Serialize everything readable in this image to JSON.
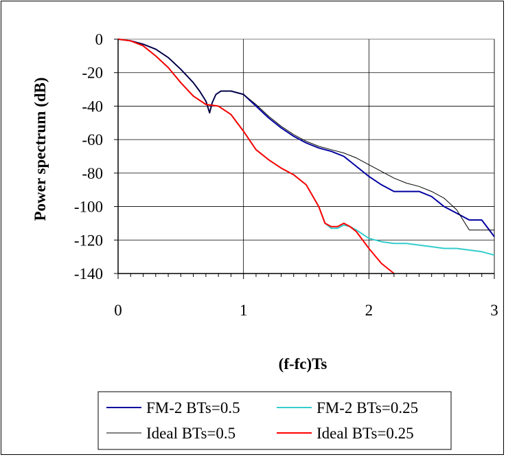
{
  "chart_data": {
    "type": "line",
    "title": "",
    "xlabel": "(f-fc)Ts",
    "ylabel": "Power spectrum (dB)",
    "xlim": [
      0,
      3
    ],
    "ylim": [
      -140,
      0
    ],
    "x_ticks": [
      "0",
      "1",
      "2",
      "3"
    ],
    "y_ticks": [
      "0",
      "-20",
      "-40",
      "-60",
      "-80",
      "-100",
      "-120",
      "-140"
    ],
    "grid": true,
    "legend_position": "bottom",
    "series": [
      {
        "name": "FM-2 BTs=0.5",
        "color": "#0000a0",
        "x": [
          0,
          0.1,
          0.2,
          0.3,
          0.4,
          0.5,
          0.55,
          0.6,
          0.65,
          0.7,
          0.73,
          0.75,
          0.78,
          0.82,
          0.9,
          1.0,
          1.1,
          1.2,
          1.3,
          1.4,
          1.5,
          1.6,
          1.7,
          1.8,
          1.9,
          2.0,
          2.1,
          2.2,
          2.3,
          2.4,
          2.5,
          2.6,
          2.7,
          2.8,
          2.9,
          3.0
        ],
        "values": [
          0,
          -1,
          -3,
          -6,
          -11,
          -18,
          -22,
          -26,
          -31,
          -37,
          -44,
          -38,
          -33,
          -31,
          -31,
          -33,
          -40,
          -47,
          -53,
          -58,
          -62,
          -65,
          -67,
          -70,
          -76,
          -82,
          -87,
          -91,
          -91,
          -91,
          -94,
          -100,
          -104,
          -108,
          -108,
          -118
        ]
      },
      {
        "name": "FM-2 BTs=0.25",
        "color": "#33cccc",
        "x": [
          0,
          0.1,
          0.2,
          0.3,
          0.4,
          0.5,
          0.6,
          0.7,
          0.8,
          0.9,
          1.0,
          1.1,
          1.2,
          1.3,
          1.4,
          1.5,
          1.6,
          1.65,
          1.7,
          1.75,
          1.8,
          1.85,
          1.9,
          2.0,
          2.1,
          2.2,
          2.3,
          2.4,
          2.5,
          2.6,
          2.7,
          2.8,
          2.9,
          3.0
        ],
        "values": [
          0,
          -1,
          -4,
          -10,
          -17,
          -26,
          -34,
          -39,
          -40,
          -45,
          -55,
          -66,
          -72,
          -77,
          -81,
          -87,
          -100,
          -110,
          -113,
          -113,
          -111,
          -112,
          -114,
          -119,
          -121,
          -122,
          -122,
          -123,
          -124,
          -125,
          -125,
          -126,
          -127,
          -129
        ]
      },
      {
        "name": "Ideal BTs=0.5",
        "color": "#000000",
        "x": [
          0,
          0.1,
          0.2,
          0.3,
          0.4,
          0.5,
          0.55,
          0.6,
          0.65,
          0.7,
          0.73,
          0.75,
          0.78,
          0.82,
          0.9,
          1.0,
          1.1,
          1.2,
          1.3,
          1.4,
          1.5,
          1.6,
          1.7,
          1.8,
          1.9,
          2.0,
          2.1,
          2.2,
          2.3,
          2.4,
          2.5,
          2.6,
          2.7,
          2.8,
          2.9,
          3.0
        ],
        "values": [
          0,
          -1,
          -3,
          -6,
          -11,
          -18,
          -22,
          -26,
          -31,
          -37,
          -44,
          -38,
          -33,
          -31,
          -31,
          -33,
          -39,
          -46,
          -52,
          -57,
          -61,
          -64,
          -66,
          -68,
          -71,
          -75,
          -79,
          -83,
          -86,
          -88,
          -91,
          -95,
          -102,
          -114,
          -114,
          -114
        ]
      },
      {
        "name": "Ideal BTs=0.25",
        "color": "#ff0000",
        "x": [
          0,
          0.1,
          0.2,
          0.3,
          0.4,
          0.5,
          0.6,
          0.7,
          0.8,
          0.9,
          1.0,
          1.1,
          1.2,
          1.3,
          1.4,
          1.5,
          1.6,
          1.65,
          1.7,
          1.75,
          1.8,
          1.85,
          1.9,
          2.0,
          2.1,
          2.2
        ],
        "values": [
          0,
          -1,
          -4,
          -10,
          -17,
          -26,
          -34,
          -39,
          -40,
          -45,
          -55,
          -66,
          -72,
          -77,
          -81,
          -87,
          -100,
          -110,
          -112,
          -112,
          -110,
          -112,
          -115,
          -125,
          -134,
          -140
        ]
      }
    ]
  }
}
